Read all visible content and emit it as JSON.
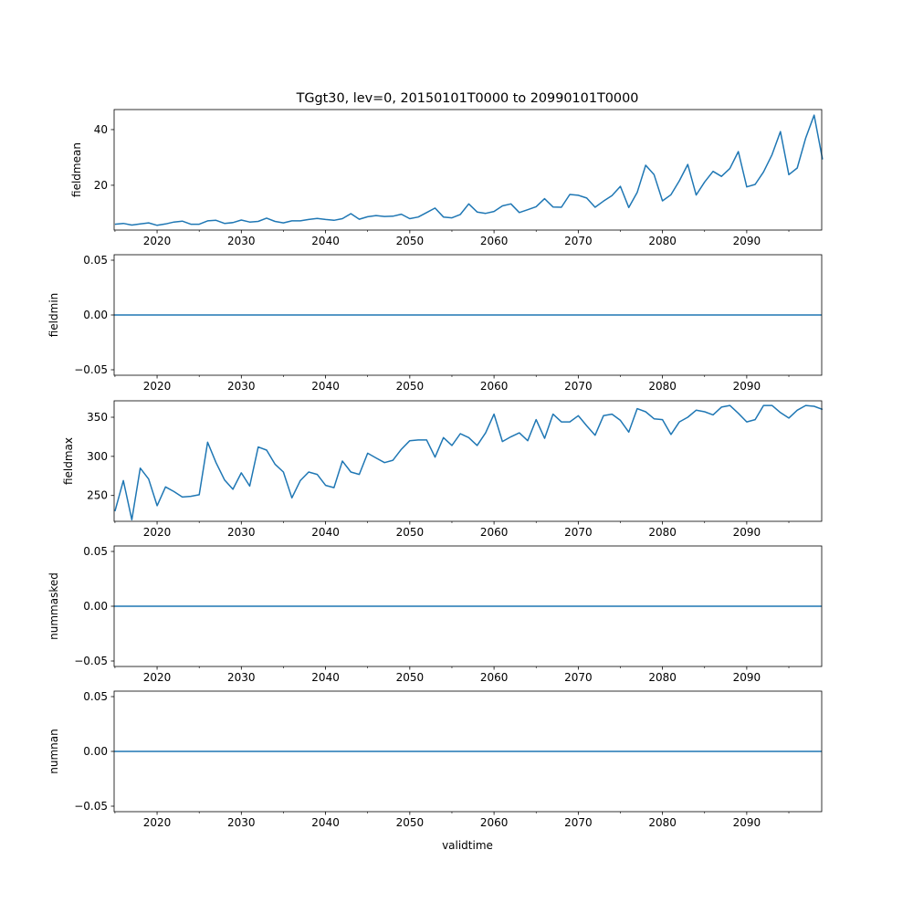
{
  "chart_data": {
    "type": "line",
    "title": "TGgt30, lev=0, 20150101T0000 to 20990101T0000",
    "xlabel": "validtime",
    "xlim": [
      2014.9,
      2098.9
    ],
    "x_ticks": [
      2020,
      2030,
      2040,
      2050,
      2060,
      2070,
      2080,
      2090
    ],
    "x_tick_labels": [
      "2020",
      "2030",
      "2040",
      "2050",
      "2060",
      "2070",
      "2080",
      "2090"
    ],
    "x_minor_ticks": [
      2015,
      2025,
      2035,
      2045,
      2055,
      2065,
      2075,
      2085,
      2095
    ],
    "line_color": "#1f77b4",
    "x": [
      2015,
      2016,
      2017,
      2018,
      2019,
      2020,
      2021,
      2022,
      2023,
      2024,
      2025,
      2026,
      2027,
      2028,
      2029,
      2030,
      2031,
      2032,
      2033,
      2034,
      2035,
      2036,
      2037,
      2038,
      2039,
      2040,
      2041,
      2042,
      2043,
      2044,
      2045,
      2046,
      2047,
      2048,
      2049,
      2050,
      2051,
      2052,
      2053,
      2054,
      2055,
      2056,
      2057,
      2058,
      2059,
      2060,
      2061,
      2062,
      2063,
      2064,
      2065,
      2066,
      2067,
      2068,
      2069,
      2070,
      2071,
      2072,
      2073,
      2074,
      2075,
      2076,
      2077,
      2078,
      2079,
      2080,
      2081,
      2082,
      2083,
      2084,
      2085,
      2086,
      2087,
      2088,
      2089,
      2090,
      2091,
      2092,
      2093,
      2094,
      2095,
      2096,
      2097,
      2098,
      2099
    ],
    "subplots": [
      {
        "ylabel": "fieldmean",
        "ylim": [
          3.9,
          47.2
        ],
        "y_ticks": [
          20,
          40
        ],
        "y_tick_labels": [
          "20",
          "40"
        ],
        "values": [
          6.0,
          6.3,
          5.7,
          6.1,
          6.5,
          5.6,
          6.1,
          6.8,
          7.1,
          6.0,
          6.0,
          7.2,
          7.4,
          6.3,
          6.6,
          7.5,
          6.8,
          7.0,
          8.2,
          7.0,
          6.5,
          7.2,
          7.2,
          7.7,
          8.1,
          7.7,
          7.4,
          8.0,
          9.8,
          7.8,
          8.7,
          9.1,
          8.8,
          8.9,
          9.6,
          8.0,
          8.6,
          10.2,
          11.8,
          8.6,
          8.3,
          9.5,
          13.3,
          10.4,
          9.9,
          10.6,
          12.6,
          13.3,
          10.2,
          11.2,
          12.3,
          15.2,
          12.2,
          12.1,
          16.7,
          16.4,
          15.4,
          12.1,
          14.3,
          16.3,
          19.6,
          12.0,
          17.4,
          27.2,
          23.8,
          14.4,
          16.6,
          21.6,
          27.5,
          16.5,
          21.2,
          25.0,
          23.2,
          26.0,
          32.1,
          19.4,
          20.3,
          24.8,
          31.0,
          39.3,
          23.8,
          26.2,
          37.0,
          45.2,
          29.3
        ]
      },
      {
        "ylabel": "fieldmin",
        "ylim": [
          -0.055,
          0.055
        ],
        "y_ticks": [
          -0.05,
          0,
          0.05
        ],
        "y_tick_labels": [
          "−0.05",
          "0.00",
          "0.05"
        ],
        "constant": 0
      },
      {
        "ylabel": "fieldmax",
        "ylim": [
          217,
          371
        ],
        "y_ticks": [
          250,
          300,
          350
        ],
        "y_tick_labels": [
          "250",
          "300",
          "350"
        ],
        "values": [
          230,
          269,
          219,
          285,
          271,
          237,
          261,
          255,
          248,
          249,
          251,
          318,
          292,
          270,
          258,
          279,
          262,
          312,
          308,
          290,
          280,
          247,
          269,
          280,
          277,
          263,
          260,
          294,
          280,
          277,
          304,
          298,
          292,
          295,
          309,
          320,
          321,
          321,
          299,
          324,
          314,
          329,
          324,
          314,
          330,
          354,
          319,
          325,
          330,
          320,
          347,
          323,
          354,
          344,
          344,
          352,
          339,
          327,
          352,
          354,
          346,
          331,
          361,
          357,
          348,
          347,
          328,
          344,
          350,
          359,
          357,
          353,
          363,
          365,
          355,
          344,
          347,
          365,
          365,
          356,
          349,
          359,
          365,
          364,
          360
        ]
      },
      {
        "ylabel": "nummasked",
        "ylim": [
          -0.055,
          0.055
        ],
        "y_ticks": [
          -0.05,
          0,
          0.05
        ],
        "y_tick_labels": [
          "−0.05",
          "0.00",
          "0.05"
        ],
        "constant": 0
      },
      {
        "ylabel": "numnan",
        "ylim": [
          -0.055,
          0.055
        ],
        "y_ticks": [
          -0.05,
          0,
          0.05
        ],
        "y_tick_labels": [
          "−0.05",
          "0.00",
          "0.05"
        ],
        "constant": 0
      }
    ]
  }
}
